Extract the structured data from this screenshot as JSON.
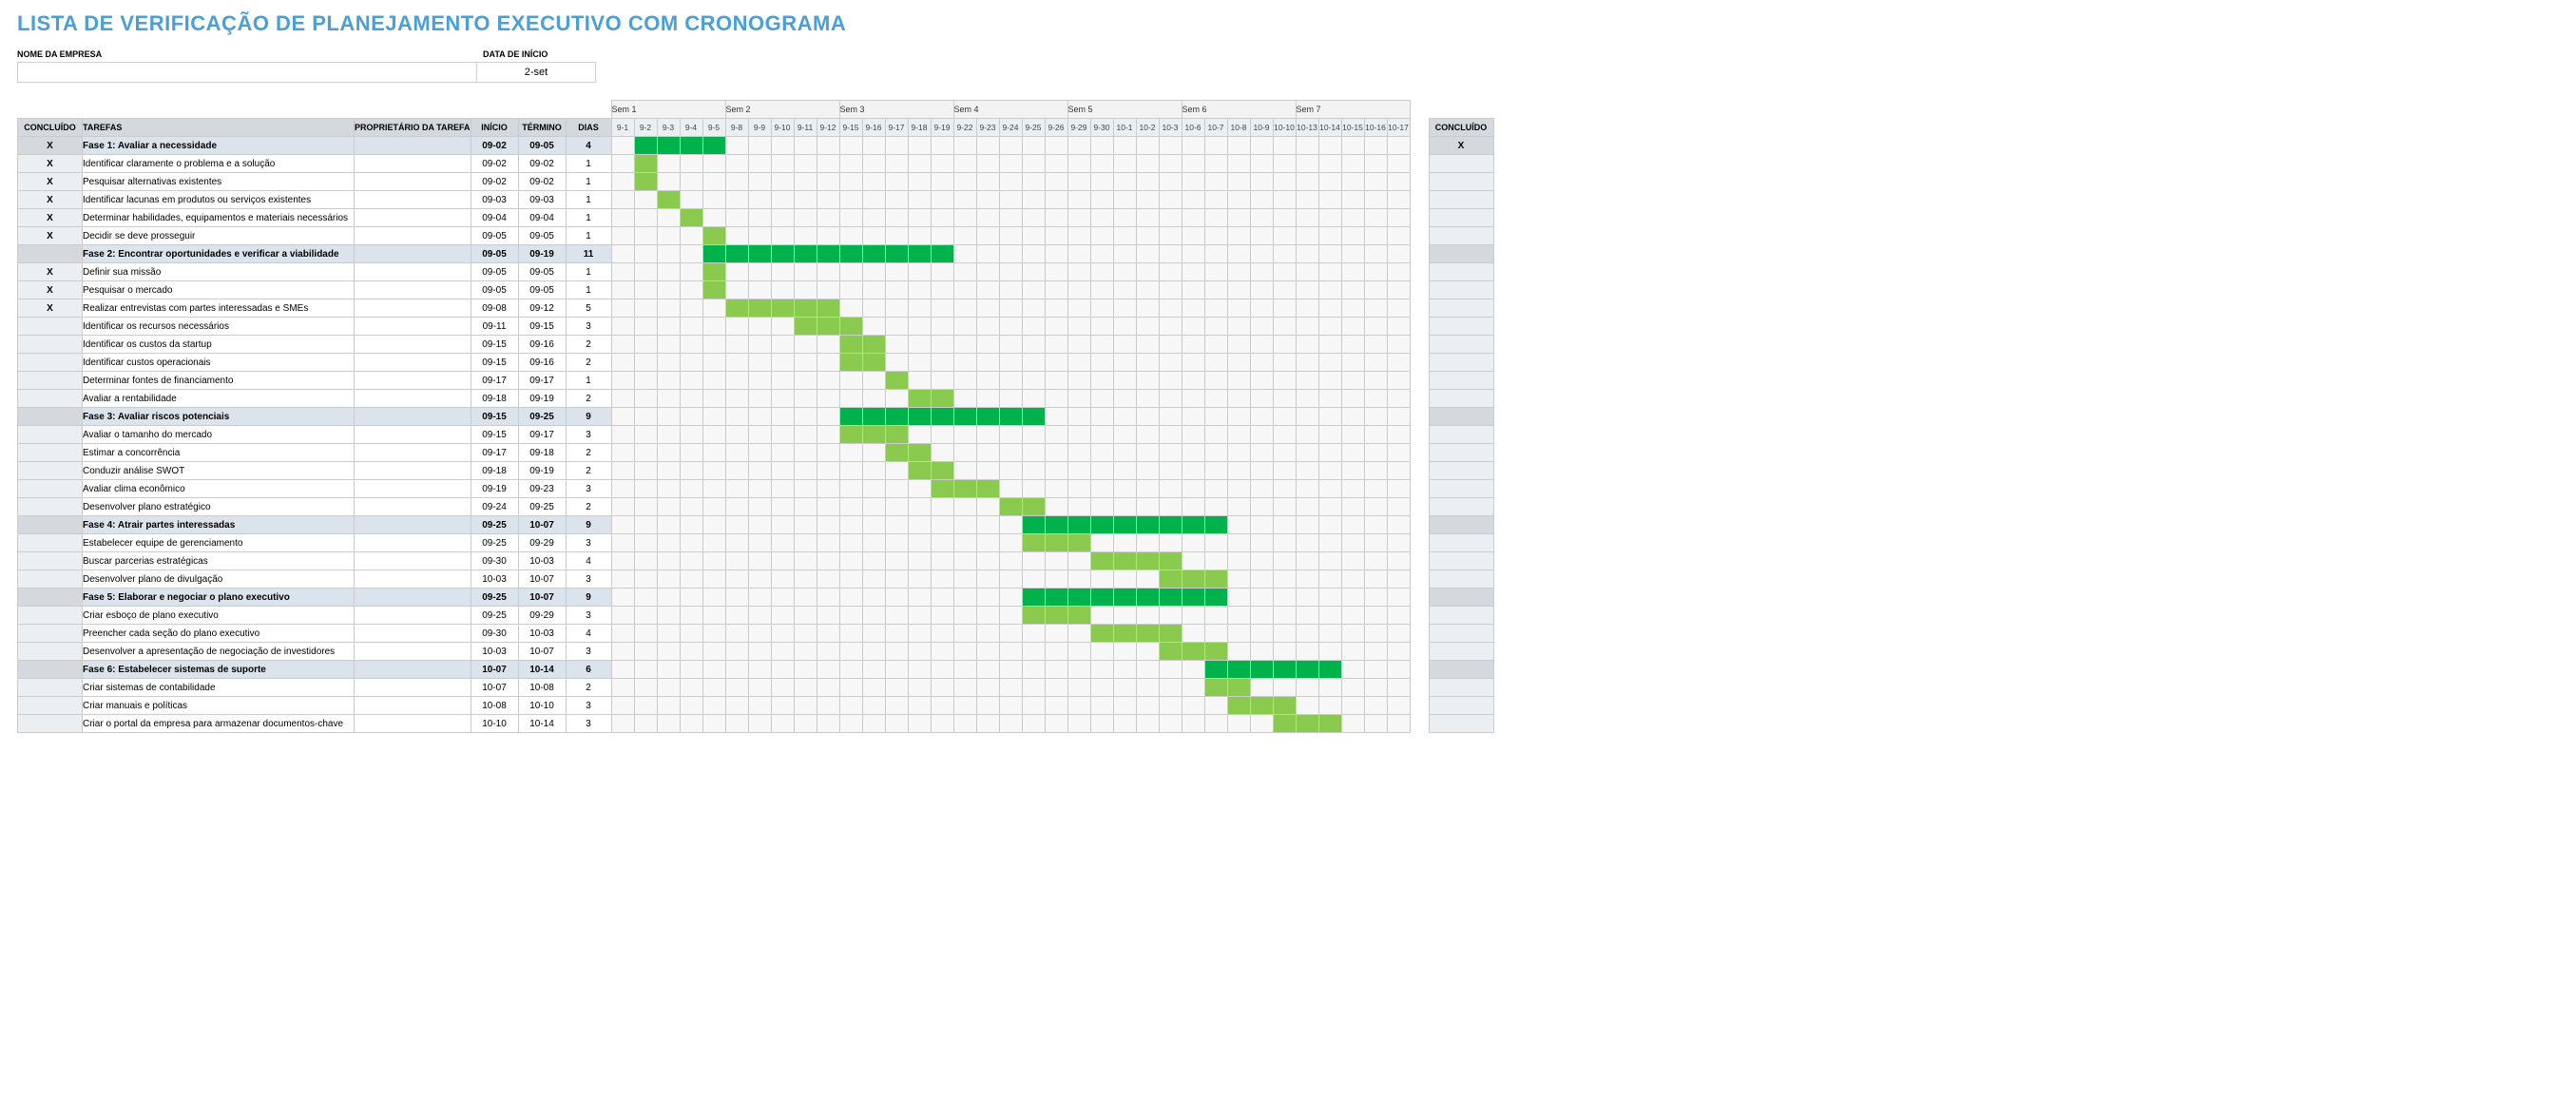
{
  "title": "LISTA DE VERIFICAÇÃO DE PLANEJAMENTO EXECUTIVO COM CRONOGRAMA",
  "meta": {
    "company_label": "NOME DA EMPRESA",
    "company_value": "",
    "start_label": "DATA DE INÍCIO",
    "start_value": "2-set"
  },
  "headers": {
    "done": "CONCLUÍDO",
    "tasks": "TAREFAS",
    "owner": "PROPRIETÁRIO DA TAREFA",
    "start": "INÍCIO",
    "end": "TÉRMINO",
    "days": "DIAS",
    "done2": "CONCLUÍDO"
  },
  "weeks": [
    {
      "label": "Sem 1",
      "days": [
        "9-1",
        "9-2",
        "9-3",
        "9-4",
        "9-5"
      ]
    },
    {
      "label": "Sem 2",
      "days": [
        "9-8",
        "9-9",
        "9-10",
        "9-11",
        "9-12"
      ]
    },
    {
      "label": "Sem 3",
      "days": [
        "9-15",
        "9-16",
        "9-17",
        "9-18",
        "9-19"
      ]
    },
    {
      "label": "Sem 4",
      "days": [
        "9-22",
        "9-23",
        "9-24",
        "9-25",
        "9-26"
      ]
    },
    {
      "label": "Sem 5",
      "days": [
        "9-29",
        "9-30",
        "10-1",
        "10-2",
        "10-3"
      ]
    },
    {
      "label": "Sem 6",
      "days": [
        "10-6",
        "10-7",
        "10-8",
        "10-9",
        "10-10"
      ]
    },
    {
      "label": "Sem 7",
      "days": [
        "10-13",
        "10-14",
        "10-15",
        "10-16",
        "10-17"
      ]
    }
  ],
  "colors": {
    "title": "#4a9fd8",
    "header_bg": "#d5d9de",
    "phase_bg": "#dbe4ed",
    "done_col_bg": "#eceff2",
    "grid": "#cbcbcb",
    "bar_phase": "#00b24b",
    "bar_task": "#8acb4f",
    "day_bg": "#f7f7f7",
    "week_bg": "#f3f3f3"
  },
  "rows": [
    {
      "phase": true,
      "done": "X",
      "task": "Fase 1: Avaliar a necessidade",
      "owner": "",
      "start": "09-02",
      "end": "09-05",
      "days": "4",
      "bar": [
        1,
        4
      ],
      "done2": "X"
    },
    {
      "phase": false,
      "done": "X",
      "task": "Identificar claramente o problema e a solução",
      "owner": "",
      "start": "09-02",
      "end": "09-02",
      "days": "1",
      "bar": [
        1,
        1
      ],
      "done2": ""
    },
    {
      "phase": false,
      "done": "X",
      "task": "Pesquisar alternativas existentes",
      "owner": "",
      "start": "09-02",
      "end": "09-02",
      "days": "1",
      "bar": [
        1,
        1
      ],
      "done2": ""
    },
    {
      "phase": false,
      "done": "X",
      "task": "Identificar lacunas em produtos ou serviços existentes",
      "owner": "",
      "start": "09-03",
      "end": "09-03",
      "days": "1",
      "bar": [
        2,
        2
      ],
      "done2": ""
    },
    {
      "phase": false,
      "done": "X",
      "task": "Determinar habilidades, equipamentos e materiais necessários",
      "owner": "",
      "start": "09-04",
      "end": "09-04",
      "days": "1",
      "bar": [
        3,
        3
      ],
      "done2": ""
    },
    {
      "phase": false,
      "done": "X",
      "task": "Decidir se deve prosseguir",
      "owner": "",
      "start": "09-05",
      "end": "09-05",
      "days": "1",
      "bar": [
        4,
        4
      ],
      "done2": ""
    },
    {
      "phase": true,
      "done": "",
      "task": "Fase 2: Encontrar oportunidades e verificar a viabilidade",
      "owner": "",
      "start": "09-05",
      "end": "09-19",
      "days": "11",
      "bar": [
        4,
        14
      ],
      "done2": ""
    },
    {
      "phase": false,
      "done": "X",
      "task": "Definir sua missão",
      "owner": "",
      "start": "09-05",
      "end": "09-05",
      "days": "1",
      "bar": [
        4,
        4
      ],
      "done2": ""
    },
    {
      "phase": false,
      "done": "X",
      "task": "Pesquisar o mercado",
      "owner": "",
      "start": "09-05",
      "end": "09-05",
      "days": "1",
      "bar": [
        4,
        4
      ],
      "done2": ""
    },
    {
      "phase": false,
      "done": "X",
      "task": "Realizar entrevistas com partes interessadas e SMEs",
      "owner": "",
      "start": "09-08",
      "end": "09-12",
      "days": "5",
      "bar": [
        5,
        9
      ],
      "done2": ""
    },
    {
      "phase": false,
      "done": "",
      "task": "Identificar os recursos necessários",
      "owner": "",
      "start": "09-11",
      "end": "09-15",
      "days": "3",
      "bar": [
        8,
        10
      ],
      "done2": ""
    },
    {
      "phase": false,
      "done": "",
      "task": "Identificar os custos da startup",
      "owner": "",
      "start": "09-15",
      "end": "09-16",
      "days": "2",
      "bar": [
        10,
        11
      ],
      "done2": ""
    },
    {
      "phase": false,
      "done": "",
      "task": "Identificar custos operacionais",
      "owner": "",
      "start": "09-15",
      "end": "09-16",
      "days": "2",
      "bar": [
        10,
        11
      ],
      "done2": ""
    },
    {
      "phase": false,
      "done": "",
      "task": "Determinar fontes de financiamento",
      "owner": "",
      "start": "09-17",
      "end": "09-17",
      "days": "1",
      "bar": [
        12,
        12
      ],
      "done2": ""
    },
    {
      "phase": false,
      "done": "",
      "task": "Avaliar a rentabilidade",
      "owner": "",
      "start": "09-18",
      "end": "09-19",
      "days": "2",
      "bar": [
        13,
        14
      ],
      "done2": ""
    },
    {
      "phase": true,
      "done": "",
      "task": "Fase 3: Avaliar riscos potenciais",
      "owner": "",
      "start": "09-15",
      "end": "09-25",
      "days": "9",
      "bar": [
        10,
        18
      ],
      "done2": ""
    },
    {
      "phase": false,
      "done": "",
      "task": "Avaliar o tamanho do mercado",
      "owner": "",
      "start": "09-15",
      "end": "09-17",
      "days": "3",
      "bar": [
        10,
        12
      ],
      "done2": ""
    },
    {
      "phase": false,
      "done": "",
      "task": "Estimar a concorrência",
      "owner": "",
      "start": "09-17",
      "end": "09-18",
      "days": "2",
      "bar": [
        12,
        13
      ],
      "done2": ""
    },
    {
      "phase": false,
      "done": "",
      "task": "Conduzir análise SWOT",
      "owner": "",
      "start": "09-18",
      "end": "09-19",
      "days": "2",
      "bar": [
        13,
        14
      ],
      "done2": ""
    },
    {
      "phase": false,
      "done": "",
      "task": "Avaliar clima econômico",
      "owner": "",
      "start": "09-19",
      "end": "09-23",
      "days": "3",
      "bar": [
        14,
        16
      ],
      "done2": ""
    },
    {
      "phase": false,
      "done": "",
      "task": "Desenvolver plano estratégico",
      "owner": "",
      "start": "09-24",
      "end": "09-25",
      "days": "2",
      "bar": [
        17,
        18
      ],
      "done2": ""
    },
    {
      "phase": true,
      "done": "",
      "task": "Fase 4: Atrair partes interessadas",
      "owner": "",
      "start": "09-25",
      "end": "10-07",
      "days": "9",
      "bar": [
        18,
        26
      ],
      "done2": ""
    },
    {
      "phase": false,
      "done": "",
      "task": "Estabelecer equipe de gerenciamento",
      "owner": "",
      "start": "09-25",
      "end": "09-29",
      "days": "3",
      "bar": [
        18,
        20
      ],
      "done2": ""
    },
    {
      "phase": false,
      "done": "",
      "task": "Buscar parcerias estratégicas",
      "owner": "",
      "start": "09-30",
      "end": "10-03",
      "days": "4",
      "bar": [
        21,
        24
      ],
      "done2": ""
    },
    {
      "phase": false,
      "done": "",
      "task": "Desenvolver plano de divulgação",
      "owner": "",
      "start": "10-03",
      "end": "10-07",
      "days": "3",
      "bar": [
        24,
        26
      ],
      "done2": ""
    },
    {
      "phase": true,
      "done": "",
      "task": "Fase 5: Elaborar e negociar o plano executivo",
      "owner": "",
      "start": "09-25",
      "end": "10-07",
      "days": "9",
      "bar": [
        18,
        26
      ],
      "done2": ""
    },
    {
      "phase": false,
      "done": "",
      "task": "Criar esboço de plano executivo",
      "owner": "",
      "start": "09-25",
      "end": "09-29",
      "days": "3",
      "bar": [
        18,
        20
      ],
      "done2": ""
    },
    {
      "phase": false,
      "done": "",
      "task": "Preencher cada seção do plano executivo",
      "owner": "",
      "start": "09-30",
      "end": "10-03",
      "days": "4",
      "bar": [
        21,
        24
      ],
      "done2": ""
    },
    {
      "phase": false,
      "done": "",
      "task": "Desenvolver a apresentação de negociação de investidores",
      "owner": "",
      "start": "10-03",
      "end": "10-07",
      "days": "3",
      "bar": [
        24,
        26
      ],
      "done2": ""
    },
    {
      "phase": true,
      "done": "",
      "task": "Fase 6: Estabelecer sistemas de suporte",
      "owner": "",
      "start": "10-07",
      "end": "10-14",
      "days": "6",
      "bar": [
        26,
        31
      ],
      "done2": ""
    },
    {
      "phase": false,
      "done": "",
      "task": "Criar sistemas de contabilidade",
      "owner": "",
      "start": "10-07",
      "end": "10-08",
      "days": "2",
      "bar": [
        26,
        27
      ],
      "done2": ""
    },
    {
      "phase": false,
      "done": "",
      "task": "Criar manuais e políticas",
      "owner": "",
      "start": "10-08",
      "end": "10-10",
      "days": "3",
      "bar": [
        27,
        29
      ],
      "done2": ""
    },
    {
      "phase": false,
      "done": "",
      "task": "Criar o portal da empresa para armazenar documentos-chave",
      "owner": "",
      "start": "10-10",
      "end": "10-14",
      "days": "3",
      "bar": [
        29,
        31
      ],
      "done2": ""
    }
  ]
}
